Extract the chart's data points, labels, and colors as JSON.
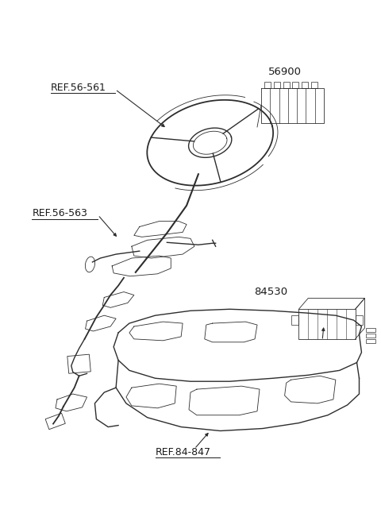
{
  "bg_color": "#ffffff",
  "line_color": "#2d2d2d",
  "label_color": "#1a1a1a",
  "labels": {
    "ref_56_561": "REF.56-561",
    "ref_56_563": "REF.56-563",
    "part_56900": "56900",
    "part_84530": "84530",
    "ref_84_847": "REF.84-847"
  },
  "figsize": [
    4.8,
    6.56
  ],
  "dpi": 100
}
